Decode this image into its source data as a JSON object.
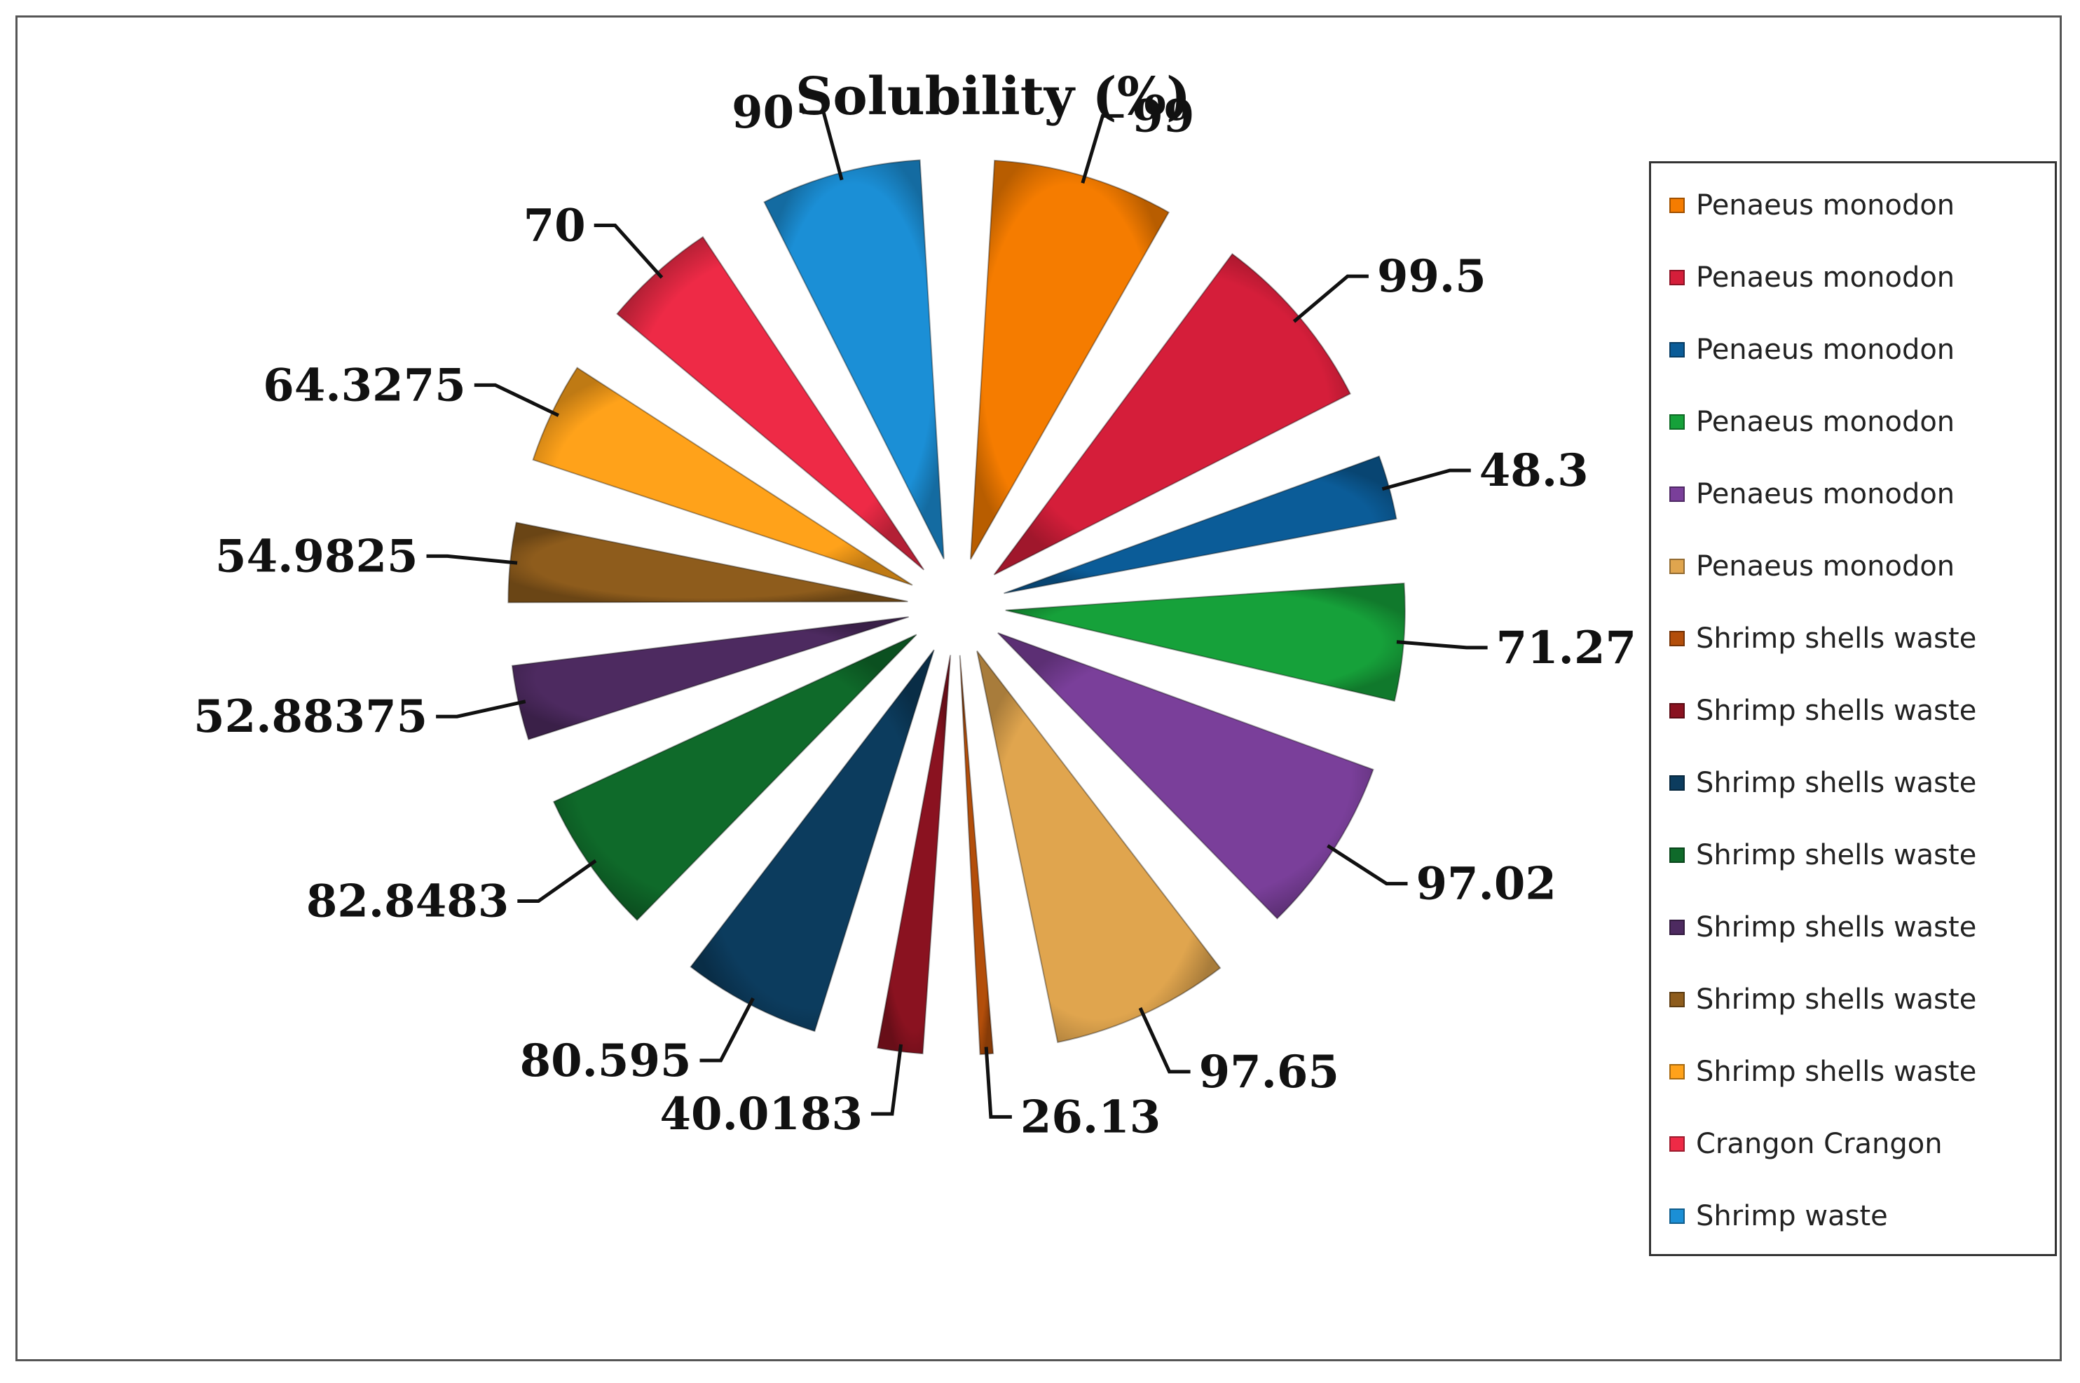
{
  "chart_data": {
    "type": "pie",
    "title": "Solubility (%)",
    "legend_position": "right",
    "slices": [
      {
        "label": "Penaeus monodon",
        "value": 99,
        "value_text": "99",
        "color": "#F57C00"
      },
      {
        "label": "Penaeus monodon",
        "value": 99.5,
        "value_text": "99.5",
        "color": "#D51E3A"
      },
      {
        "label": "Penaeus monodon",
        "value": 48.3,
        "value_text": "48.3",
        "color": "#0B5C98"
      },
      {
        "label": "Penaeus monodon",
        "value": 71.27,
        "value_text": "71.27",
        "color": "#16A13A"
      },
      {
        "label": "Penaeus monodon",
        "value": 97.02,
        "value_text": "97.02",
        "color": "#7A3F9A"
      },
      {
        "label": "Penaeus monodon",
        "value": 97.65,
        "value_text": "97.65",
        "color": "#E0A54E"
      },
      {
        "label": "Shrimp shells waste",
        "value": 26.13,
        "value_text": "26.13",
        "color": "#B34E0A"
      },
      {
        "label": "Shrimp shells waste",
        "value": 40.0183,
        "value_text": "40.0183",
        "color": "#8A1220"
      },
      {
        "label": "Shrimp shells waste",
        "value": 80.595,
        "value_text": "80.595",
        "color": "#0C3C5E"
      },
      {
        "label": "Shrimp shells waste",
        "value": 82.8483,
        "value_text": "82.8483",
        "color": "#0F6A2A"
      },
      {
        "label": "Shrimp shells waste",
        "value": 52.88375,
        "value_text": "52.88375",
        "color": "#4D2A60"
      },
      {
        "label": "Shrimp shells waste",
        "value": 54.9825,
        "value_text": "54.9825",
        "color": "#8E5C1C"
      },
      {
        "label": "Shrimp shells waste",
        "value": 64.3275,
        "value_text": "64.3275",
        "color": "#FFA21A"
      },
      {
        "label": "Crangon Crangon",
        "value": 70,
        "value_text": "70",
        "color": "#EE2A46"
      },
      {
        "label": "Shrimp waste",
        "value": 90,
        "value_text": "90",
        "color": "#1B8FD6"
      }
    ]
  }
}
